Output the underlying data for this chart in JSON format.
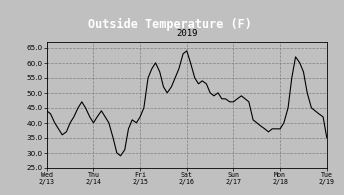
{
  "title": "Outside Temperature (F)",
  "subtitle": "2019",
  "fig_bg_color": "#c0c0c0",
  "title_bg_color": "#000000",
  "title_text_color": "#ffffff",
  "line_color": "#000000",
  "grid_color": "#808080",
  "plot_bg_color": "#c0c0c0",
  "ylim": [
    25.0,
    67.0
  ],
  "yticks": [
    25.0,
    30.0,
    35.0,
    40.0,
    45.0,
    50.0,
    55.0,
    60.0,
    65.0
  ],
  "xlabel_dates": [
    "Wed\n2/13",
    "Thu\n2/14",
    "Fri\n2/15",
    "Sat\n2/16",
    "Sun\n2/17",
    "Mon\n2/18",
    "Tue\n2/19"
  ],
  "x_tick_positions": [
    0,
    1,
    2,
    3,
    4,
    5,
    6
  ],
  "x_values": [
    0,
    0.08,
    0.17,
    0.25,
    0.33,
    0.42,
    0.5,
    0.58,
    0.67,
    0.75,
    0.83,
    0.92,
    1.0,
    1.08,
    1.17,
    1.25,
    1.33,
    1.42,
    1.5,
    1.58,
    1.67,
    1.75,
    1.83,
    1.92,
    2.0,
    2.08,
    2.17,
    2.25,
    2.33,
    2.42,
    2.5,
    2.58,
    2.67,
    2.75,
    2.83,
    2.92,
    3.0,
    3.08,
    3.17,
    3.25,
    3.33,
    3.42,
    3.5,
    3.58,
    3.67,
    3.75,
    3.83,
    3.92,
    4.0,
    4.08,
    4.17,
    4.25,
    4.33,
    4.42,
    4.5,
    4.58,
    4.67,
    4.75,
    4.83,
    4.92,
    5.0,
    5.08,
    5.17,
    5.25,
    5.33,
    5.42,
    5.5,
    5.58,
    5.67,
    5.75,
    5.83,
    5.92,
    6.0
  ],
  "y_values": [
    44,
    43,
    40,
    38,
    36,
    37,
    40,
    42,
    45,
    47,
    45,
    42,
    40,
    42,
    44,
    42,
    40,
    35,
    30,
    29,
    31,
    38,
    41,
    40,
    42,
    45,
    55,
    58,
    60,
    57,
    52,
    50,
    52,
    55,
    58,
    63,
    64,
    60,
    55,
    53,
    54,
    53,
    50,
    49,
    50,
    48,
    48,
    47,
    47,
    48,
    49,
    48,
    47,
    41,
    40,
    39,
    38,
    37,
    38,
    38,
    38,
    40,
    45,
    55,
    62,
    60,
    57,
    50,
    45,
    44,
    43,
    42,
    35
  ]
}
